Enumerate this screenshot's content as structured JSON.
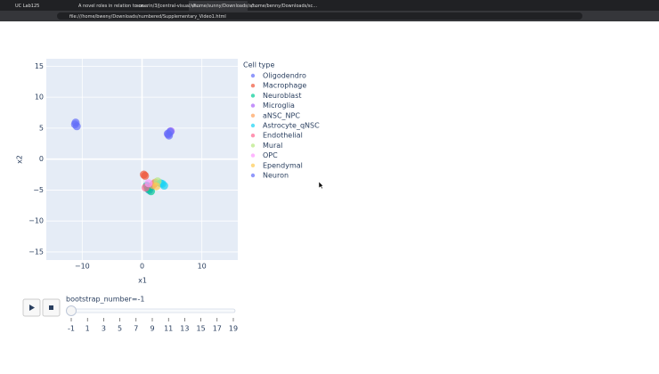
{
  "browser": {
    "tabs": [
      "UC Lab125",
      "A novel roles in relation to ce...",
      "sunerin/3/Jcentral-visual/wi...",
      "/home/sunny/Downloads/sc...",
      "/home/benny/Downloads/sc..."
    ],
    "address": "file:///home/bweny/Downloads/numbered/Supplementary_Video1.html"
  },
  "chart_data": {
    "type": "scatter",
    "xlabel": "x1",
    "ylabel": "x2",
    "legend_title": "Cell type",
    "xlim": [
      -16,
      16
    ],
    "ylim": [
      -16.3,
      16.2
    ],
    "grid": true,
    "xticks": [
      {
        "value": -10,
        "label": "−10"
      },
      0,
      10
    ],
    "yticks": [
      {
        "value": -15,
        "label": "−15"
      },
      {
        "value": -10,
        "label": "−10"
      },
      {
        "value": -5,
        "label": "−5"
      },
      0,
      5,
      10,
      15
    ],
    "series": [
      {
        "name": "Oligodendro",
        "color": "#636efa",
        "x": [
          1.5,
          2,
          1.2
        ],
        "y": [
          -4.5,
          -4,
          -5
        ]
      },
      {
        "name": "Macrophage",
        "color": "#EF553B",
        "x": [
          0.3,
          0.5
        ],
        "y": [
          -2.5,
          -2.7
        ]
      },
      {
        "name": "Neuroblast",
        "color": "#00cc96",
        "x": [
          1,
          1.5,
          0.8
        ],
        "y": [
          -4.8,
          -5.2,
          -4.3
        ]
      },
      {
        "name": "Microglia",
        "color": "#ab63fa",
        "x": [
          4.4,
          4.8
        ],
        "y": [
          4.0,
          4.5
        ]
      },
      {
        "name": "aNSC_NPC",
        "color": "#FFA15A",
        "x": [
          2.2,
          1.8
        ],
        "y": [
          -3.8,
          -4.2
        ]
      },
      {
        "name": "Astrocyte_qNSC",
        "color": "#19d3f3",
        "x": [
          3.4,
          3.7,
          3.1
        ],
        "y": [
          -4,
          -4.3,
          -3.9
        ]
      },
      {
        "name": "Endothelial",
        "color": "#FF6692",
        "x": [
          0.6
        ],
        "y": [
          -4.6
        ]
      },
      {
        "name": "Mural",
        "color": "#B6E880",
        "x": [
          2.6
        ],
        "y": [
          -3.6
        ]
      },
      {
        "name": "OPC",
        "color": "#FF97FF",
        "x": [
          1.1
        ],
        "y": [
          -3.9
        ]
      },
      {
        "name": "Ependymal",
        "color": "#FECB52",
        "x": [
          2.4
        ],
        "y": [
          -4.4
        ]
      },
      {
        "name": "Neuron",
        "color": "#636efa",
        "x": [
          -11.2,
          -10.9,
          -11.1,
          4.3,
          4.7,
          4.5
        ],
        "y": [
          5.6,
          5.3,
          5.9,
          4.1,
          4.4,
          3.8
        ]
      }
    ]
  },
  "slider": {
    "label": "bootstrap_number=-1",
    "value": -1,
    "ticks": [
      -1,
      1,
      3,
      5,
      7,
      9,
      11,
      13,
      15,
      17,
      19
    ]
  }
}
